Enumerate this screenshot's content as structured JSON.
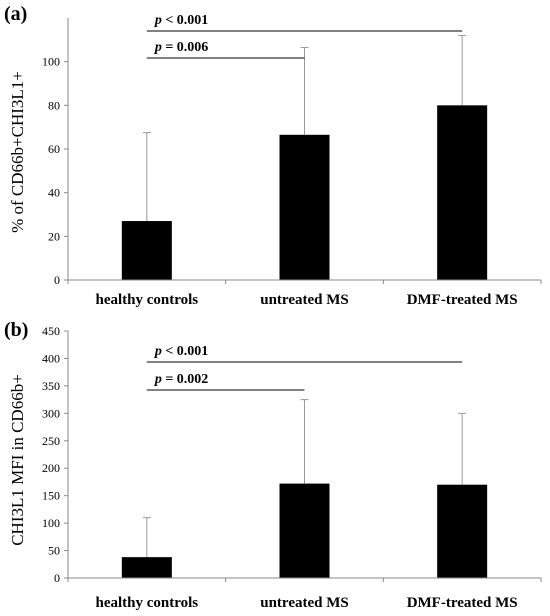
{
  "chart_data": [
    {
      "panel": "(a)",
      "type": "bar",
      "categories": [
        "healthy controls",
        "untreated MS",
        "DMF-treated MS"
      ],
      "values": [
        27,
        66.5,
        80
      ],
      "error_upper": [
        67.5,
        106.5,
        112
      ],
      "ylabel": "% of CD66b+CHI3L1+",
      "ylim": [
        0,
        120
      ],
      "yticks": [
        0,
        20,
        40,
        60,
        80,
        100
      ],
      "legend": "none",
      "grid": false,
      "significance": [
        {
          "p_symbol": "p",
          "text": " < 0.001",
          "from": 0,
          "to": 2
        },
        {
          "p_symbol": "p",
          "text": " = 0.006",
          "from": 0,
          "to": 1
        }
      ]
    },
    {
      "panel": "(b)",
      "type": "bar",
      "categories": [
        "healthy controls",
        "untreated MS",
        "DMF-treated MS"
      ],
      "values": [
        38,
        172,
        170
      ],
      "error_upper": [
        110,
        325,
        300
      ],
      "ylabel": "CHI3L1 MFI in CD66b+",
      "ylim": [
        0,
        450
      ],
      "yticks": [
        0,
        50,
        100,
        150,
        200,
        250,
        300,
        350,
        400,
        450
      ],
      "legend": "none",
      "grid": false,
      "significance": [
        {
          "p_symbol": "p",
          "text": " < 0.001",
          "from": 0,
          "to": 2
        },
        {
          "p_symbol": "p",
          "text": " = 0.002",
          "from": 0,
          "to": 1
        }
      ]
    }
  ],
  "colors": {
    "bar": "#000000",
    "axis": "#888888",
    "error": "#999999",
    "text": "#000000"
  }
}
